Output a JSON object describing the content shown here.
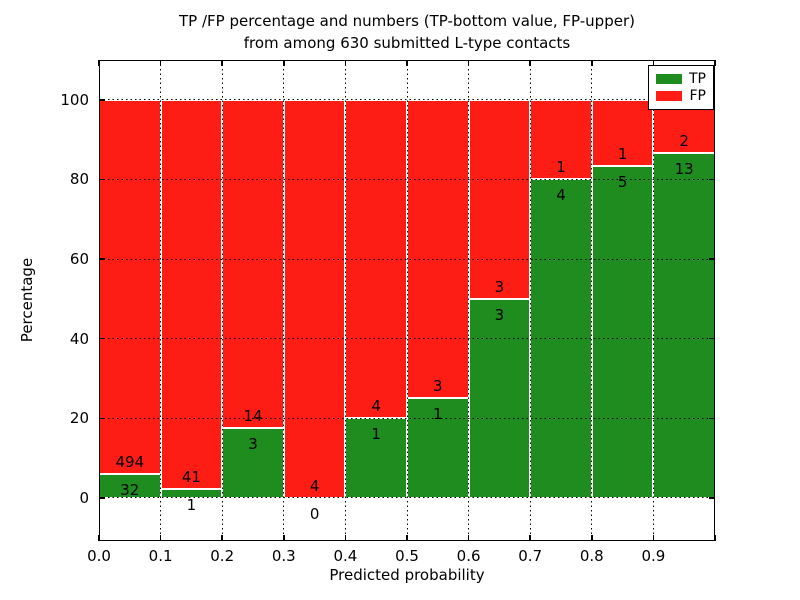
{
  "figure": {
    "title_line1": "TP /FP percentage and numbers (TP-bottom value, FP-upper)",
    "title_line2": "from among 630 submitted L-type contacts"
  },
  "chart_data": {
    "type": "bar",
    "stacked": true,
    "normalized_to_percent": true,
    "title": "TP /FP percentage and numbers (TP-bottom value, FP-upper) from among 630 submitted L-type contacts",
    "xlabel": "Predicted probability",
    "ylabel": "Percentage",
    "total_contacts": 630,
    "xlim": [
      0.0,
      1.0
    ],
    "ylim": [
      -10.8,
      110
    ],
    "bin_width": 0.1,
    "bin_starts": [
      0.0,
      0.1,
      0.2,
      0.3,
      0.4,
      0.5,
      0.6,
      0.7,
      0.8,
      0.9
    ],
    "series": [
      {
        "name": "TP",
        "color": "#1e8c1e",
        "counts": [
          32,
          1,
          3,
          0,
          1,
          1,
          3,
          4,
          5,
          13
        ]
      },
      {
        "name": "FP",
        "color": "#fe1d15",
        "counts": [
          494,
          41,
          14,
          4,
          4,
          3,
          3,
          1,
          1,
          2
        ]
      }
    ],
    "tp_percent_heights": [
      6.08,
      2.38,
      17.65,
      0.0,
      20.0,
      25.0,
      50.0,
      80.0,
      83.33,
      86.67
    ],
    "x_ticks": {
      "values": [
        0.0,
        0.1,
        0.2,
        0.3,
        0.4,
        0.5,
        0.6,
        0.7,
        0.8,
        0.9
      ],
      "labels": [
        "0.0",
        "0.1",
        "0.2",
        "0.3",
        "0.4",
        "0.5",
        "0.6",
        "0.7",
        "0.8",
        "0.9"
      ]
    },
    "y_ticks": {
      "values": [
        0,
        20,
        40,
        60,
        80,
        100
      ],
      "labels": [
        "0",
        "20",
        "40",
        "60",
        "80",
        "100"
      ]
    },
    "grid": "dotted-black",
    "bar_edge_color": "#ffffff",
    "legend": {
      "position": "upper-right",
      "entries": [
        "TP",
        "FP"
      ]
    }
  }
}
